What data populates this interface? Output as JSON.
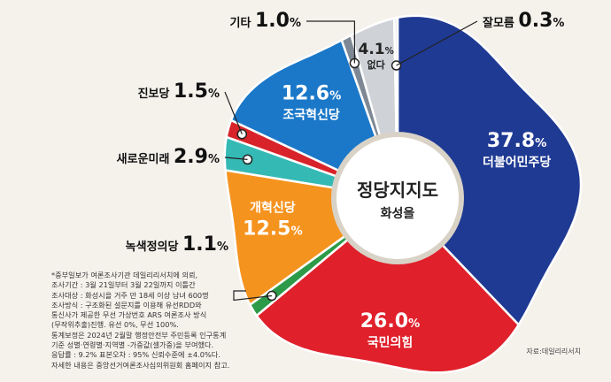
{
  "chart_data": {
    "type": "pie",
    "title": "정당지지도",
    "subtitle": "화성을",
    "unit": "%",
    "slices": [
      {
        "name": "더불어민주당",
        "value": 37.8,
        "color": "#1f3a93"
      },
      {
        "name": "국민의힘",
        "value": 26.0,
        "color": "#e0202b"
      },
      {
        "name": "녹색정의당",
        "value": 1.1,
        "color": "#2c9a48"
      },
      {
        "name": "개혁신당",
        "value": 12.5,
        "color": "#f5931f"
      },
      {
        "name": "새로운미래",
        "value": 2.9,
        "color": "#35b9b4"
      },
      {
        "name": "진보당",
        "value": 1.5,
        "color": "#d8232a"
      },
      {
        "name": "조국혁신당",
        "value": 12.6,
        "color": "#1b78c9"
      },
      {
        "name": "기타",
        "value": 1.0,
        "color": "#7d8894"
      },
      {
        "name": "없다",
        "value": 4.1,
        "color": "#cfd3d8"
      },
      {
        "name": "잘모름",
        "value": 0.3,
        "color": "#e8e8ec"
      }
    ]
  },
  "notes": [
    "*중부일보가 여론조사기관 데일리리서치에 의뢰,",
    "조사기간 : 3월 21일부터 3월 22일까지 이틀간",
    "조사대상 : 화성시을 거주 만 18세 이상 남녀 600명",
    "조사방식 : 구조화된 설문지를 이용해 유선RDD와",
    "통신사가 제공한 무선 가상번호 ARS 여론조사 방식",
    "(무작위추출)진행. 유선 0%, 무선 100%.",
    "통계보정은 2024년 2월말 행정안전부 주민등록 인구통계",
    "기준 성별·연령별·지역별 -가중값(셀가중)을 부여했다.",
    "응답률 : 9.2% 표본오차 : 95% 신뢰수준에 ±4.0%다.",
    "자세한 내용은 중앙선거여론조사심의위원회 홈페이지 참고."
  ],
  "source": "자료:데일리리서치"
}
